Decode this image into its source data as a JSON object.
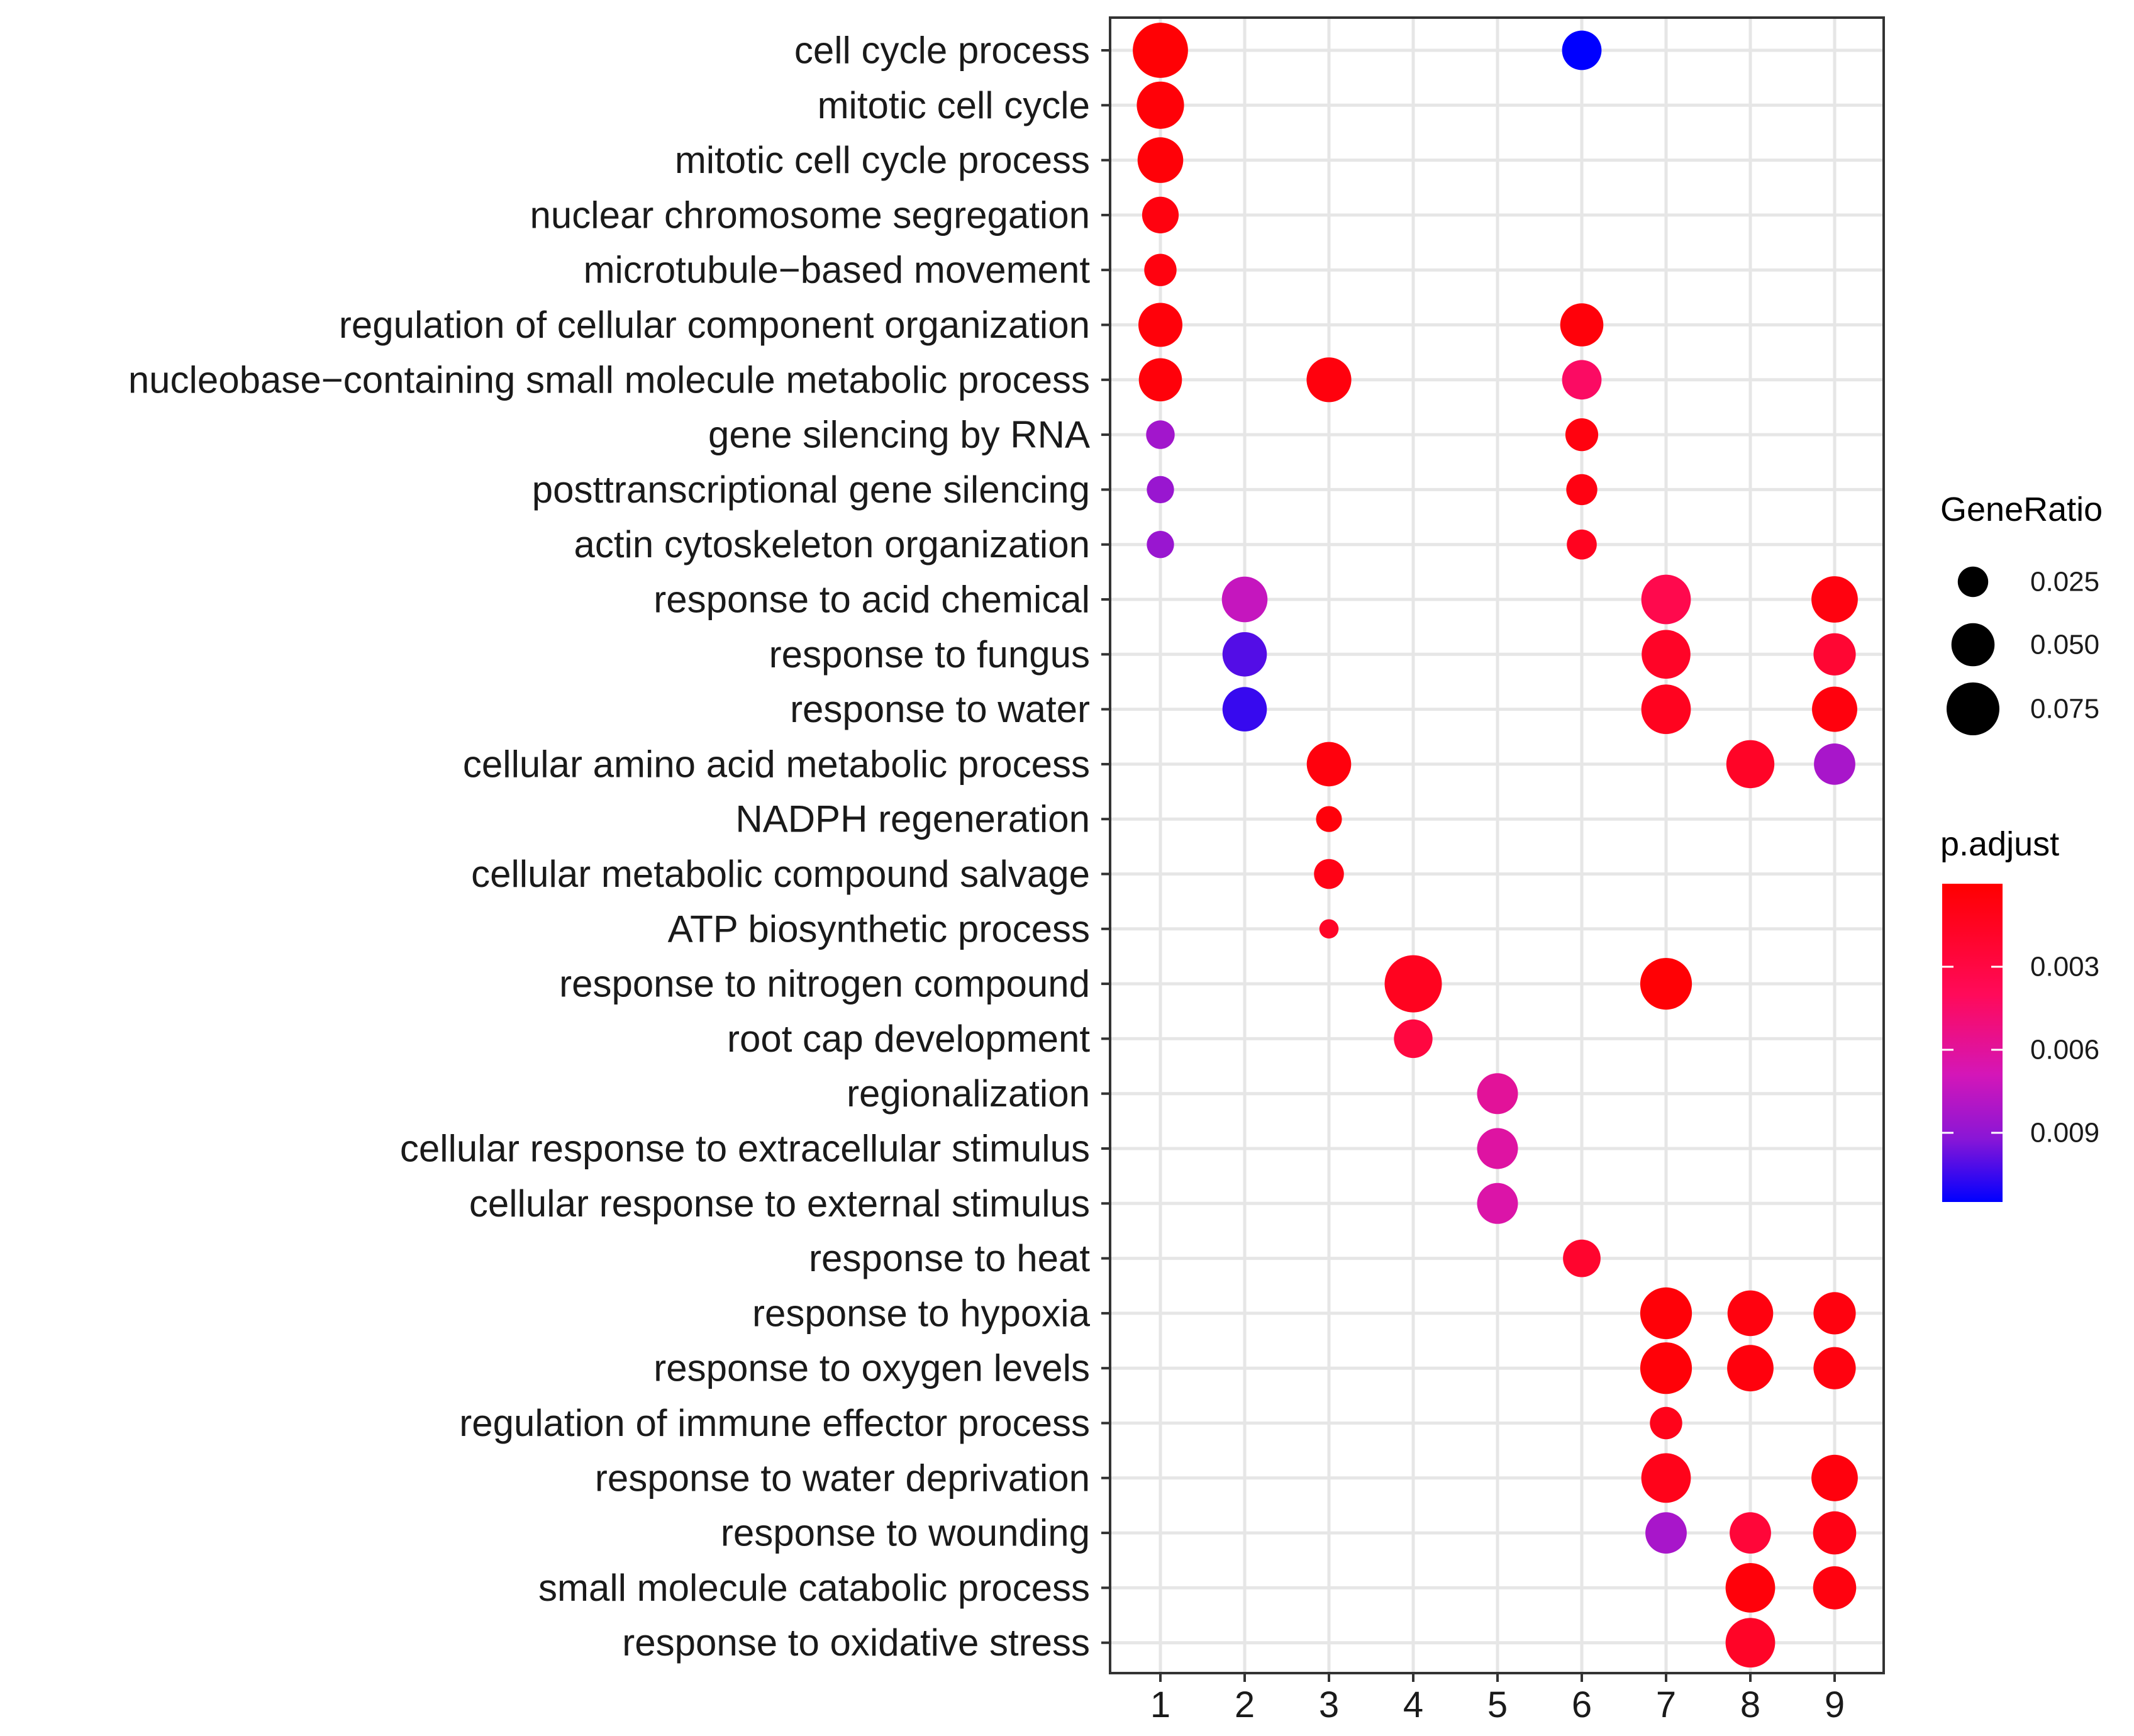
{
  "chart_data": {
    "type": "scatter",
    "subtype": "dot plot (GO enrichment)",
    "x_categories": [
      "1",
      "2",
      "3",
      "4",
      "5",
      "6",
      "7",
      "8",
      "9"
    ],
    "y_categories": [
      "cell cycle process",
      "mitotic cell cycle",
      "mitotic cell cycle process",
      "nuclear chromosome segregation",
      "microtubule−based movement",
      "regulation of cellular component organization",
      "nucleobase−containing small molecule metabolic process",
      "gene silencing by RNA",
      "posttranscriptional gene silencing",
      "actin cytoskeleton organization",
      "response to acid chemical",
      "response to fungus",
      "response to water",
      "cellular amino acid metabolic process",
      "NADPH regeneration",
      "cellular metabolic compound salvage",
      "ATP biosynthetic process",
      "response to nitrogen compound",
      "root cap development",
      "regionalization",
      "cellular response to extracellular stimulus",
      "cellular response to external stimulus",
      "response to heat",
      "response to hypoxia",
      "response to oxygen levels",
      "regulation of immune effector process",
      "response to water deprivation",
      "response to wounding",
      "small molecule catabolic process",
      "response to oxidative stress"
    ],
    "points": [
      {
        "x": "1",
        "y": 0,
        "gene_ratio": 0.082,
        "p_adjust": 0.0002
      },
      {
        "x": "6",
        "y": 0,
        "gene_ratio": 0.042,
        "p_adjust": 0.0115
      },
      {
        "x": "1",
        "y": 1,
        "gene_ratio": 0.06,
        "p_adjust": 0.0003
      },
      {
        "x": "1",
        "y": 2,
        "gene_ratio": 0.056,
        "p_adjust": 0.0003
      },
      {
        "x": "1",
        "y": 3,
        "gene_ratio": 0.036,
        "p_adjust": 0.0006
      },
      {
        "x": "1",
        "y": 4,
        "gene_ratio": 0.028,
        "p_adjust": 0.0006
      },
      {
        "x": "1",
        "y": 5,
        "gene_ratio": 0.052,
        "p_adjust": 0.0004
      },
      {
        "x": "6",
        "y": 5,
        "gene_ratio": 0.05,
        "p_adjust": 0.0004
      },
      {
        "x": "1",
        "y": 6,
        "gene_ratio": 0.05,
        "p_adjust": 0.0004
      },
      {
        "x": "3",
        "y": 6,
        "gene_ratio": 0.054,
        "p_adjust": 0.0005
      },
      {
        "x": "6",
        "y": 6,
        "gene_ratio": 0.042,
        "p_adjust": 0.0038
      },
      {
        "x": "1",
        "y": 7,
        "gene_ratio": 0.022,
        "p_adjust": 0.0082
      },
      {
        "x": "6",
        "y": 7,
        "gene_ratio": 0.029,
        "p_adjust": 0.0006
      },
      {
        "x": "1",
        "y": 8,
        "gene_ratio": 0.02,
        "p_adjust": 0.0085
      },
      {
        "x": "6",
        "y": 8,
        "gene_ratio": 0.026,
        "p_adjust": 0.0007
      },
      {
        "x": "1",
        "y": 9,
        "gene_ratio": 0.02,
        "p_adjust": 0.0085
      },
      {
        "x": "6",
        "y": 9,
        "gene_ratio": 0.024,
        "p_adjust": 0.0012
      },
      {
        "x": "2",
        "y": 10,
        "gene_ratio": 0.056,
        "p_adjust": 0.007
      },
      {
        "x": "7",
        "y": 10,
        "gene_ratio": 0.066,
        "p_adjust": 0.003
      },
      {
        "x": "9",
        "y": 10,
        "gene_ratio": 0.058,
        "p_adjust": 0.0006
      },
      {
        "x": "2",
        "y": 11,
        "gene_ratio": 0.053,
        "p_adjust": 0.01
      },
      {
        "x": "7",
        "y": 11,
        "gene_ratio": 0.064,
        "p_adjust": 0.0015
      },
      {
        "x": "9",
        "y": 11,
        "gene_ratio": 0.048,
        "p_adjust": 0.002
      },
      {
        "x": "2",
        "y": 12,
        "gene_ratio": 0.053,
        "p_adjust": 0.0105
      },
      {
        "x": "7",
        "y": 12,
        "gene_ratio": 0.066,
        "p_adjust": 0.0012
      },
      {
        "x": "9",
        "y": 12,
        "gene_ratio": 0.055,
        "p_adjust": 0.0005
      },
      {
        "x": "3",
        "y": 13,
        "gene_ratio": 0.053,
        "p_adjust": 0.0005
      },
      {
        "x": "8",
        "y": 13,
        "gene_ratio": 0.062,
        "p_adjust": 0.0015
      },
      {
        "x": "9",
        "y": 13,
        "gene_ratio": 0.046,
        "p_adjust": 0.008
      },
      {
        "x": "3",
        "y": 14,
        "gene_ratio": 0.018,
        "p_adjust": 0.0004
      },
      {
        "x": "3",
        "y": 15,
        "gene_ratio": 0.024,
        "p_adjust": 0.0008
      },
      {
        "x": "3",
        "y": 16,
        "gene_ratio": 0.01,
        "p_adjust": 0.0015
      },
      {
        "x": "4",
        "y": 17,
        "gene_ratio": 0.088,
        "p_adjust": 0.0012
      },
      {
        "x": "7",
        "y": 17,
        "gene_ratio": 0.072,
        "p_adjust": 0.0002
      },
      {
        "x": "4",
        "y": 18,
        "gene_ratio": 0.04,
        "p_adjust": 0.0025
      },
      {
        "x": "5",
        "y": 19,
        "gene_ratio": 0.045,
        "p_adjust": 0.0055
      },
      {
        "x": "5",
        "y": 20,
        "gene_ratio": 0.045,
        "p_adjust": 0.0058
      },
      {
        "x": "5",
        "y": 21,
        "gene_ratio": 0.045,
        "p_adjust": 0.006
      },
      {
        "x": "6",
        "y": 22,
        "gene_ratio": 0.038,
        "p_adjust": 0.0018
      },
      {
        "x": "7",
        "y": 23,
        "gene_ratio": 0.072,
        "p_adjust": 0.0003
      },
      {
        "x": "8",
        "y": 23,
        "gene_ratio": 0.056,
        "p_adjust": 0.0006
      },
      {
        "x": "9",
        "y": 23,
        "gene_ratio": 0.048,
        "p_adjust": 0.0006
      },
      {
        "x": "7",
        "y": 24,
        "gene_ratio": 0.072,
        "p_adjust": 0.0003
      },
      {
        "x": "8",
        "y": 24,
        "gene_ratio": 0.058,
        "p_adjust": 0.0005
      },
      {
        "x": "9",
        "y": 24,
        "gene_ratio": 0.048,
        "p_adjust": 0.0006
      },
      {
        "x": "7",
        "y": 25,
        "gene_ratio": 0.028,
        "p_adjust": 0.001
      },
      {
        "x": "7",
        "y": 26,
        "gene_ratio": 0.066,
        "p_adjust": 0.001
      },
      {
        "x": "9",
        "y": 26,
        "gene_ratio": 0.058,
        "p_adjust": 0.0005
      },
      {
        "x": "7",
        "y": 27,
        "gene_ratio": 0.046,
        "p_adjust": 0.008
      },
      {
        "x": "8",
        "y": 27,
        "gene_ratio": 0.046,
        "p_adjust": 0.0022
      },
      {
        "x": "9",
        "y": 27,
        "gene_ratio": 0.05,
        "p_adjust": 0.0008
      },
      {
        "x": "8",
        "y": 28,
        "gene_ratio": 0.066,
        "p_adjust": 0.0004
      },
      {
        "x": "9",
        "y": 28,
        "gene_ratio": 0.05,
        "p_adjust": 0.0006
      },
      {
        "x": "8",
        "y": 29,
        "gene_ratio": 0.066,
        "p_adjust": 0.0015
      }
    ],
    "size_legend": {
      "title": "GeneRatio",
      "breaks": [
        0.025,
        0.05,
        0.075
      ],
      "labels": [
        "0.025",
        "0.050",
        "0.075"
      ]
    },
    "color_legend": {
      "title": "p.adjust",
      "range": [
        0.0,
        0.0115
      ],
      "breaks": [
        0.003,
        0.006,
        0.009
      ],
      "labels": [
        "0.003",
        "0.006",
        "0.009"
      ],
      "low_color": "#ff0000",
      "mid_color": "#ff0a7a",
      "high_color": "#0000ff"
    },
    "grid": true,
    "xlabel": "",
    "ylabel": ""
  }
}
